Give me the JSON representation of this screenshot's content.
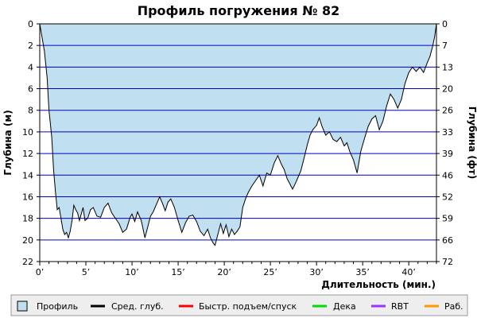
{
  "chart_data": {
    "type": "area",
    "title": "Профиль погружения № 82",
    "xlabel": "Длительность (мин.)",
    "ylabel_left": "Глубина (м)",
    "ylabel_right": "Глубина (фт)",
    "xlim": [
      0,
      43
    ],
    "ylim": [
      0,
      22
    ],
    "y_inverted": true,
    "x_tick_values": [
      0,
      5,
      10,
      15,
      20,
      25,
      30,
      35,
      40
    ],
    "x_tick_labels": [
      "0’",
      "5’",
      "10’",
      "15’",
      "20’",
      "25’",
      "30’",
      "35’",
      "40’"
    ],
    "y_tick_values": [
      0,
      2,
      4,
      6,
      8,
      10,
      12,
      14,
      16,
      18,
      20,
      22
    ],
    "y_tick_labels": [
      "0",
      "2",
      "4",
      "6",
      "8",
      "10",
      "12",
      "14",
      "16",
      "18",
      "20",
      "22"
    ],
    "y2_tick_labels": [
      "0",
      "7",
      "13",
      "20",
      "26",
      "33",
      "39",
      "46",
      "52",
      "59",
      "66",
      "72"
    ],
    "grid": "horizontal",
    "legend_position": "bottom",
    "colors": {
      "profile_fill": "#c0dff0",
      "profile_line": "#000000",
      "grid": "#0000c0",
      "axis": "#000000",
      "legend_bg": "#eeeeee"
    },
    "series": [
      {
        "name": "Профиль",
        "x": [
          0,
          0.2,
          0.5,
          0.8,
          1.0,
          1.3,
          1.5,
          1.7,
          1.9,
          2.1,
          2.3,
          2.5,
          2.7,
          2.9,
          3.1,
          3.3,
          3.5,
          3.7,
          3.9,
          4.1,
          4.3,
          4.5,
          4.7,
          4.9,
          5.2,
          5.5,
          5.8,
          6.2,
          6.6,
          7.0,
          7.4,
          7.8,
          8.2,
          8.6,
          9.0,
          9.4,
          9.8,
          10.0,
          10.3,
          10.6,
          11.0,
          11.4,
          11.8,
          12.0,
          12.3,
          12.6,
          13.0,
          13.3,
          13.6,
          13.9,
          14.2,
          14.6,
          15.0,
          15.4,
          15.8,
          16.2,
          16.6,
          17.0,
          17.4,
          17.8,
          18.2,
          18.5,
          18.8,
          19.0,
          19.3,
          19.6,
          19.9,
          20.2,
          20.5,
          20.8,
          21.1,
          21.4,
          21.7,
          22.0,
          22.3,
          22.6,
          23.0,
          23.4,
          23.8,
          24.2,
          24.6,
          25.0,
          25.4,
          25.8,
          26.2,
          26.5,
          26.8,
          27.1,
          27.4,
          27.7,
          28.0,
          28.3,
          28.6,
          29.0,
          29.3,
          29.6,
          30.0,
          30.3,
          30.6,
          31.0,
          31.4,
          31.8,
          32.2,
          32.6,
          33.0,
          33.3,
          33.6,
          34.0,
          34.4,
          34.8,
          35.2,
          35.6,
          36.0,
          36.4,
          36.8,
          37.2,
          37.6,
          38.0,
          38.4,
          38.8,
          39.2,
          39.6,
          40.0,
          40.4,
          40.8,
          41.2,
          41.6,
          42.0,
          42.3,
          42.6,
          42.8,
          43.0
        ],
        "y": [
          0,
          1.0,
          2.5,
          5.0,
          8.0,
          10.5,
          13.5,
          15.5,
          17.2,
          17.0,
          18.0,
          19.0,
          19.5,
          19.3,
          19.8,
          19.2,
          18.2,
          16.8,
          17.2,
          17.5,
          18.2,
          17.6,
          17.0,
          18.2,
          18.0,
          17.2,
          17.0,
          17.8,
          17.9,
          17.0,
          16.6,
          17.5,
          18.0,
          18.5,
          19.3,
          19.0,
          17.9,
          17.6,
          18.3,
          17.4,
          18.2,
          19.8,
          18.5,
          17.8,
          17.4,
          16.8,
          16.0,
          16.6,
          17.3,
          16.5,
          16.2,
          17.0,
          18.2,
          19.3,
          18.4,
          17.8,
          17.7,
          18.3,
          19.2,
          19.6,
          19.0,
          19.8,
          20.3,
          20.5,
          19.5,
          18.5,
          19.4,
          18.6,
          19.7,
          19.0,
          19.5,
          19.2,
          18.8,
          17.0,
          16.2,
          15.6,
          15.0,
          14.5,
          14.0,
          15.0,
          13.8,
          14.0,
          12.9,
          12.2,
          13.0,
          13.5,
          14.3,
          14.8,
          15.3,
          14.8,
          14.2,
          13.6,
          12.6,
          11.2,
          10.3,
          9.8,
          9.4,
          8.7,
          9.5,
          10.3,
          10.0,
          10.7,
          10.9,
          10.5,
          11.3,
          11.0,
          11.8,
          12.6,
          13.8,
          11.8,
          10.6,
          9.5,
          8.8,
          8.5,
          9.8,
          9.0,
          7.6,
          6.5,
          7.0,
          7.8,
          7.0,
          5.5,
          4.5,
          4.0,
          4.4,
          4.0,
          4.5,
          3.6,
          3.0,
          2.0,
          1.2,
          0
        ]
      }
    ],
    "legend": [
      {
        "label": "Профиль",
        "color": "#c0dff0",
        "type": "box"
      },
      {
        "label": "Сред. глуб.",
        "color": "#000000",
        "type": "line"
      },
      {
        "label": "Быстр. подъем/спуск",
        "color": "#ff0000",
        "type": "line"
      },
      {
        "label": "Дека",
        "color": "#00dd00",
        "type": "line"
      },
      {
        "label": "RBT",
        "color": "#9933ff",
        "type": "line"
      },
      {
        "label": "Раб.",
        "color": "#ff9900",
        "type": "line"
      }
    ]
  }
}
